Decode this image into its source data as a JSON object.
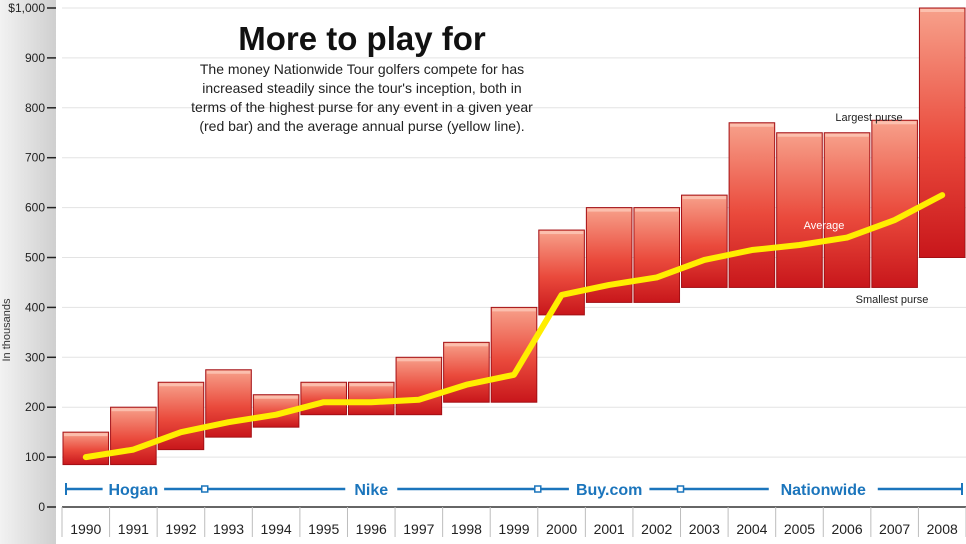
{
  "chart_data": {
    "type": "bar",
    "title": "More to play for",
    "subtitle_lines": [
      "The money Nationwide Tour golfers compete for has",
      "increased steadily since the tour's inception, both in",
      "terms of the highest purse for any event in a given year",
      "(red bar) and the average annual purse (yellow line)."
    ],
    "ylabel": "In thousands",
    "ylim": [
      0,
      1000
    ],
    "yticks": [
      "0",
      "100",
      "200",
      "300",
      "400",
      "500",
      "600",
      "700",
      "800",
      "900",
      "$1,000"
    ],
    "years": [
      "1990",
      "1991",
      "1992",
      "1993",
      "1994",
      "1995",
      "1996",
      "1997",
      "1998",
      "1999",
      "2000",
      "2001",
      "2002",
      "2003",
      "2004",
      "2005",
      "2006",
      "2007",
      "2008"
    ],
    "largest_purse": [
      150,
      200,
      250,
      275,
      225,
      250,
      250,
      300,
      330,
      400,
      555,
      600,
      600,
      625,
      770,
      750,
      750,
      775,
      1000
    ],
    "smallest_purse": [
      85,
      85,
      115,
      140,
      160,
      185,
      185,
      185,
      210,
      210,
      385,
      410,
      410,
      440,
      440,
      440,
      440,
      440,
      500
    ],
    "average_purse": [
      100,
      115,
      150,
      170,
      185,
      210,
      210,
      215,
      245,
      265,
      425,
      445,
      460,
      495,
      515,
      525,
      540,
      575,
      625
    ],
    "annotations": {
      "largest": "Largest purse",
      "average": "Average",
      "smallest": "Smallest purse"
    },
    "sponsors": [
      {
        "name": "Hogan",
        "start_year": "1990",
        "end_year": "1992"
      },
      {
        "name": "Nike",
        "start_year": "1993",
        "end_year": "1999"
      },
      {
        "name": "Buy.com",
        "start_year": "2000",
        "end_year": "2002"
      },
      {
        "name": "Nationwide",
        "start_year": "2003",
        "end_year": "2008"
      }
    ],
    "colors": {
      "bar_light": "#f5907a",
      "bar_dark": "#c8161b",
      "bar_edge": "#a30f14",
      "average_line": "#ffee00",
      "sponsor_line": "#1b75bc",
      "grid": "#e3e3e3",
      "axis_band": "#dcdcdc"
    },
    "grid": true
  }
}
